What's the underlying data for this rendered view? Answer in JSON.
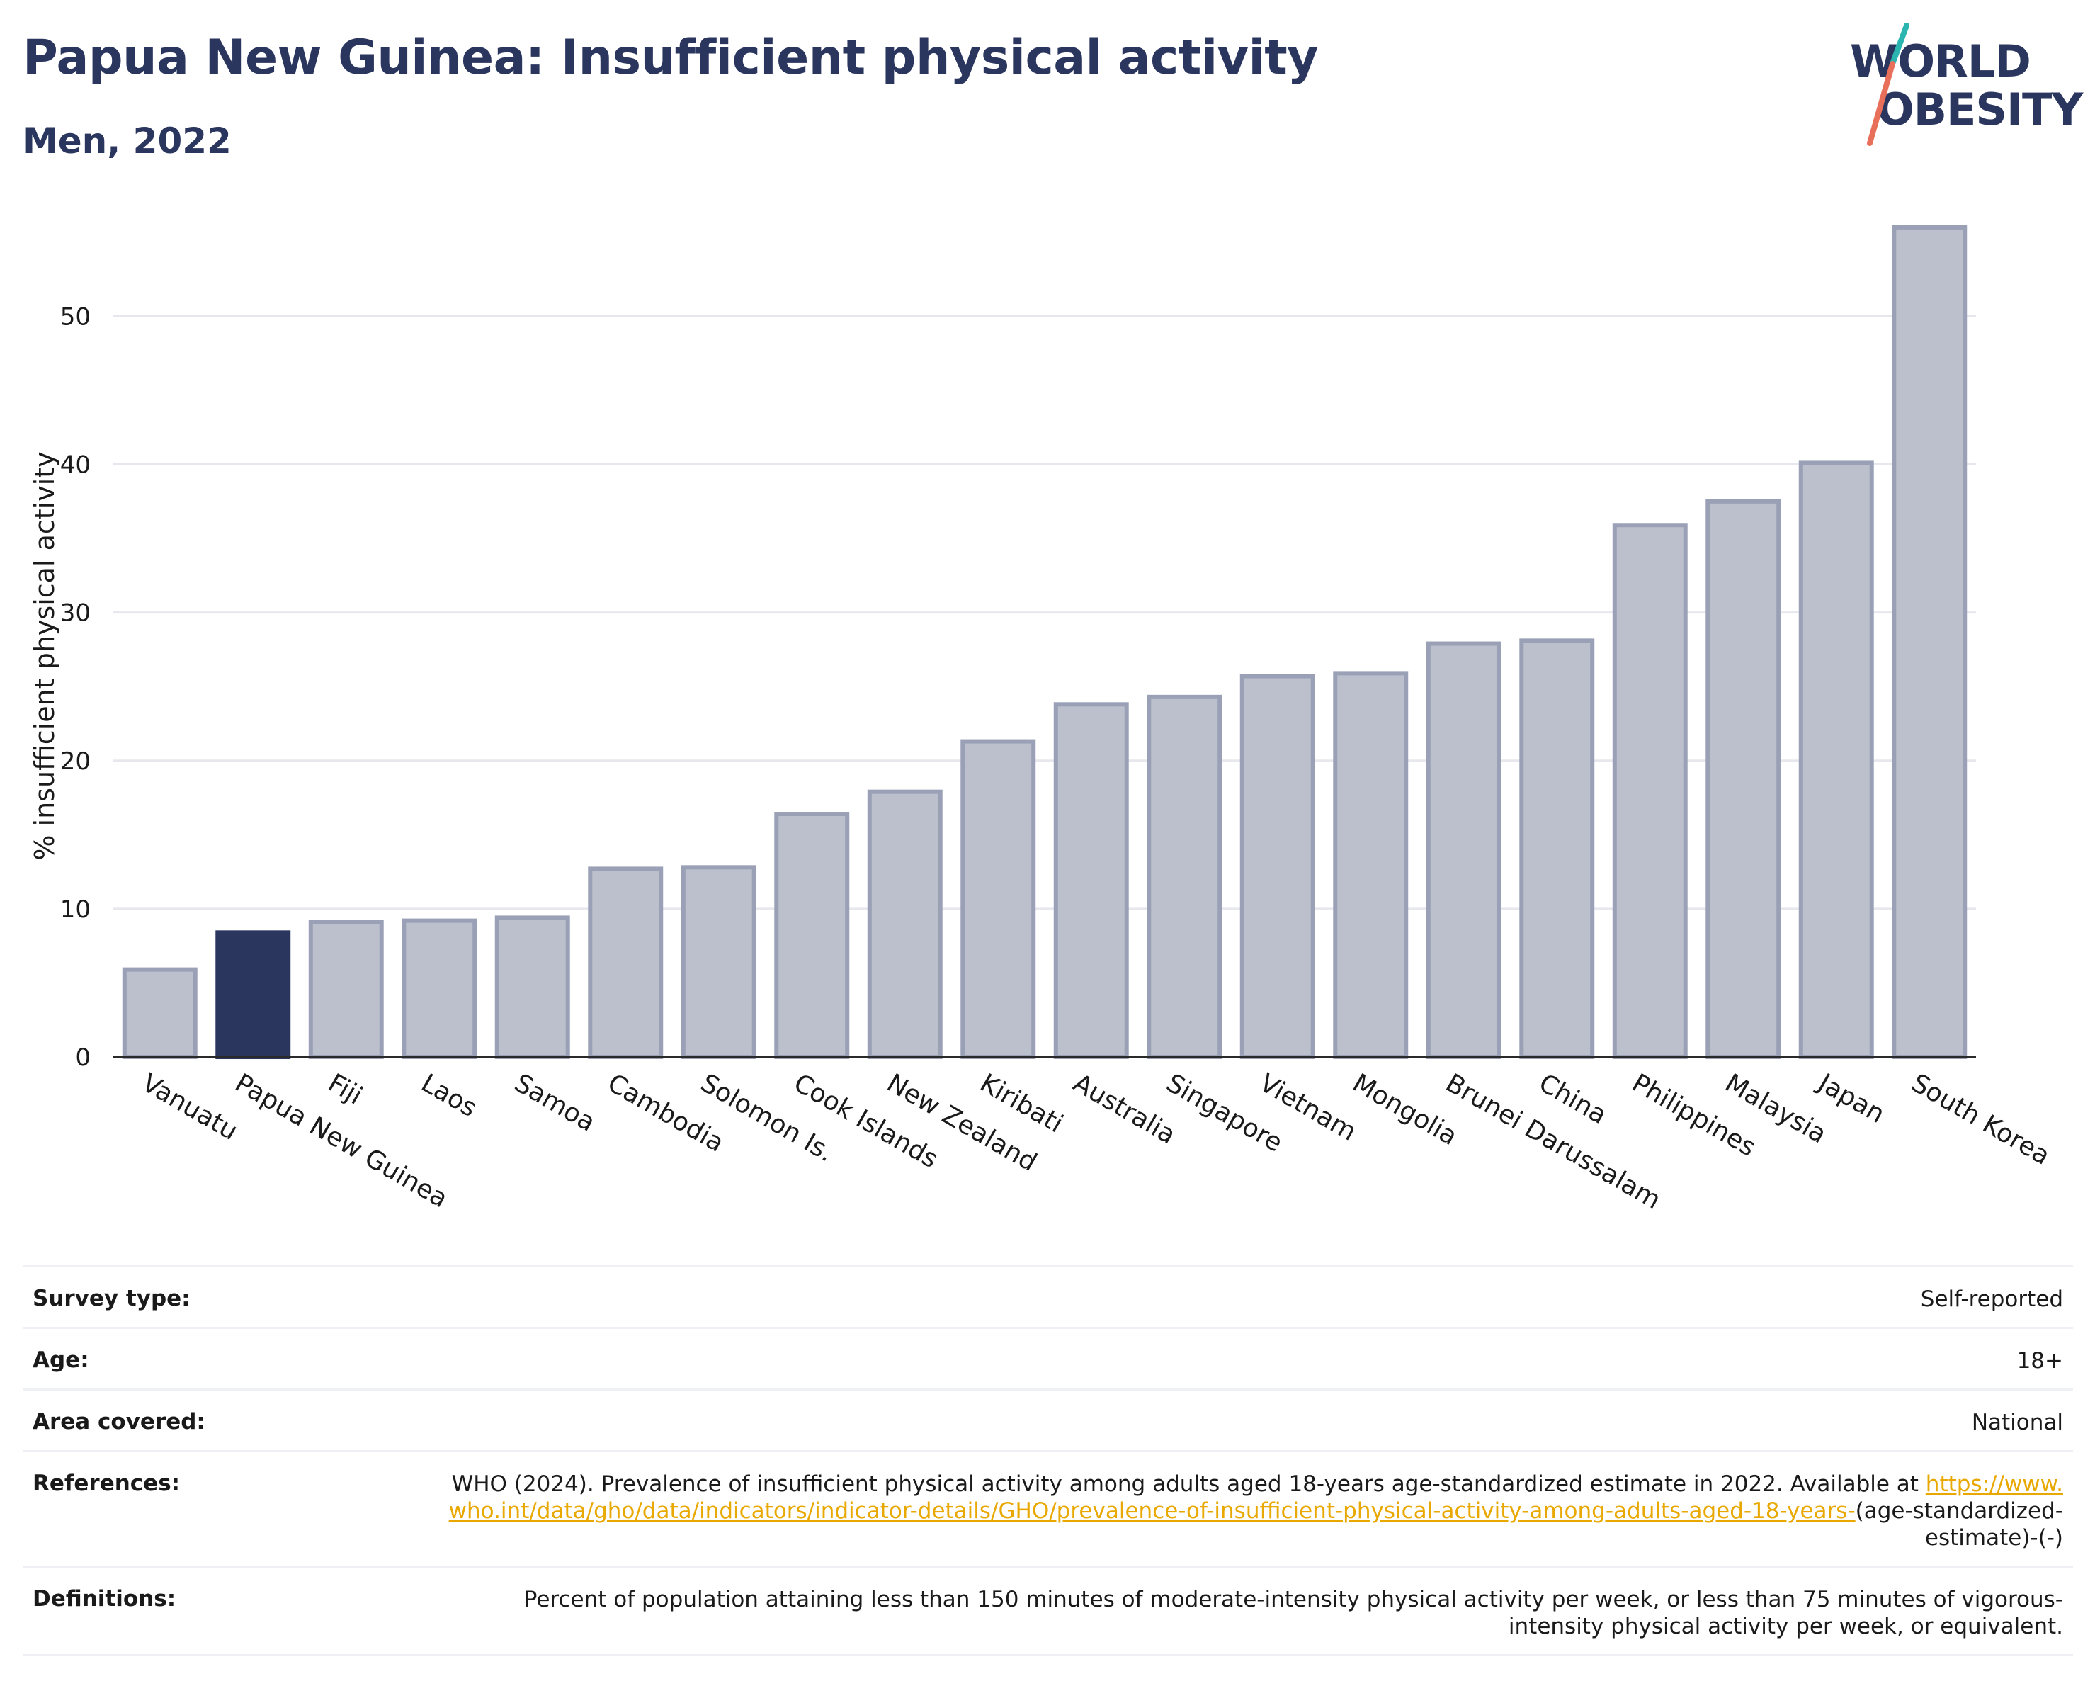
{
  "header": {
    "title": "Papua New Guinea: Insufficient physical activity",
    "subtitle": "Men, 2022"
  },
  "logo": {
    "line1": "WORLD",
    "line2": "OBESITY",
    "slash_color_top": "#2bb5b0",
    "slash_color_bottom": "#e8705a"
  },
  "colors": {
    "bar": "#bcc0cd",
    "bar_border": "#9aa0b6",
    "highlight": "#2b365f",
    "grid": "#e6e8ee",
    "text": "#1a1a1a"
  },
  "chart_data": {
    "type": "bar",
    "ylabel": "% insufficient physical activity",
    "ylim": [
      0,
      57
    ],
    "yticks": [
      0,
      10,
      20,
      30,
      40,
      50
    ],
    "grid": true,
    "highlight_category": "Papua New Guinea",
    "categories": [
      "Vanuatu",
      "Papua New Guinea",
      "Fiji",
      "Laos",
      "Samoa",
      "Cambodia",
      "Solomon Is.",
      "Cook Islands",
      "New Zealand",
      "Kiribati",
      "Australia",
      "Singapore",
      "Vietnam",
      "Mongolia",
      "Brunei Darussalam",
      "China",
      "Philippines",
      "Malaysia",
      "Japan",
      "South Korea"
    ],
    "values": [
      5.9,
      8.4,
      9.1,
      9.2,
      9.4,
      12.7,
      12.8,
      16.4,
      17.9,
      21.3,
      23.8,
      24.3,
      25.7,
      25.9,
      27.9,
      28.1,
      35.9,
      37.5,
      40.1,
      56.0
    ]
  },
  "meta": {
    "survey_type_label": "Survey type:",
    "survey_type_value": "Self-reported",
    "age_label": "Age:",
    "age_value": "18+",
    "area_label": "Area covered:",
    "area_value": "National",
    "references_label": "References:",
    "references_text": "WHO (2024). Prevalence of insufficient physical activity among adults aged 18-years age-standardized estimate in 2022. Available at",
    "references_link": "https://www.who.int/data/gho/data/indicators/indicator-details/GHO/prevalence-of-insufficient-physical-activity-among-adults-aged-18-years-",
    "references_suffix": "(age-standardized-estimate)-(-)",
    "definitions_label": "Definitions:",
    "definitions_value": "Percent of population attaining less than 150 minutes of moderate-intensity physical activity per week, or less than 75 minutes of vigorous-intensity physical activity per week, or equivalent."
  }
}
